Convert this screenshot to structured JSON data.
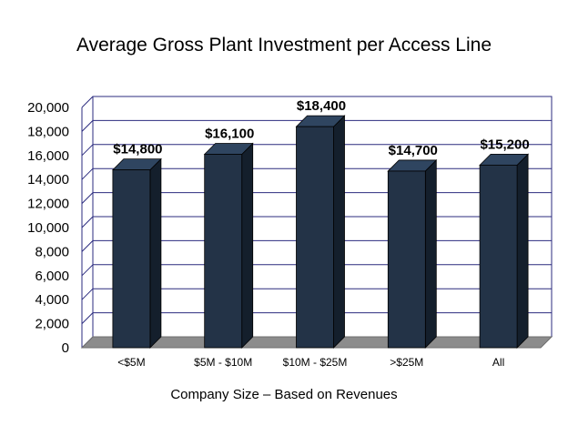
{
  "chart_data": {
    "type": "bar",
    "title": "Average Gross Plant Investment per Access Line",
    "xlabel": "Company Size – Based on Revenues",
    "ylabel": "",
    "categories": [
      "<$5M",
      "$5M - $10M",
      "$10M - $25M",
      ">$25M",
      "All"
    ],
    "values": [
      14800,
      16100,
      18400,
      14700,
      15200
    ],
    "data_labels": [
      "$14,800",
      "$16,100",
      "$18,400",
      "$14,700",
      "$15,200"
    ],
    "ylim": [
      0,
      20000
    ],
    "yticks": [
      0,
      2000,
      4000,
      6000,
      8000,
      10000,
      12000,
      14000,
      16000,
      18000,
      20000
    ],
    "ytick_labels": [
      "0",
      "2,000",
      "4,000",
      "6,000",
      "8,000",
      "10,000",
      "12,000",
      "14,000",
      "16,000",
      "18,000",
      "20,000"
    ],
    "grid": true,
    "legend": "none",
    "style": "3d-column",
    "colors": {
      "bar_front": "#233347",
      "bar_side": "#141f2c",
      "bar_top": "#2f4560",
      "grid": "#2b2b7f",
      "floor": "#8c8c8c"
    }
  }
}
